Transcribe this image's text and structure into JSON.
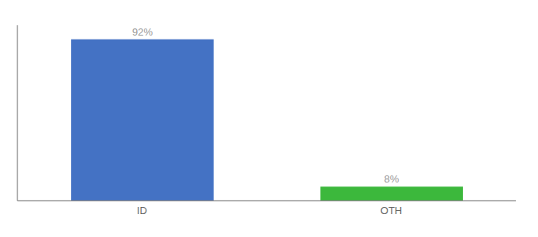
{
  "chart_data": {
    "type": "bar",
    "categories": [
      "ID",
      "OTH"
    ],
    "values": [
      92,
      8
    ],
    "value_labels": [
      "92%",
      "8%"
    ],
    "colors": [
      "#4472c4",
      "#3cb83c"
    ],
    "ylim": [
      0,
      100
    ],
    "data_labels": true,
    "tick_labels": "x"
  }
}
